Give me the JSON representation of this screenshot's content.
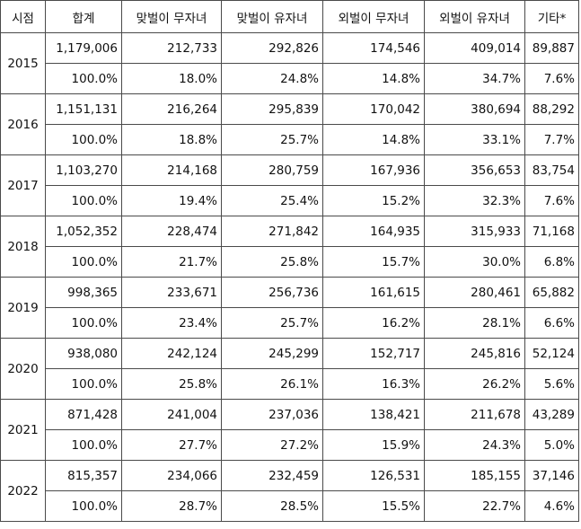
{
  "headers": [
    "시점",
    "합계",
    "맞벌이 무자녀",
    "맞벌이 유자녀",
    "외벌이 무자녀",
    "외벌이 유자녀",
    "기타*"
  ],
  "rows": [
    {
      "year": "2015",
      "counts": [
        "1,179,006",
        "212,733",
        "292,826",
        "174,546",
        "409,014",
        "89,887"
      ],
      "shares": [
        "100.0%",
        "18.0%",
        "24.8%",
        "14.8%",
        "34.7%",
        "7.6%"
      ]
    },
    {
      "year": "2016",
      "counts": [
        "1,151,131",
        "216,264",
        "295,839",
        "170,042",
        "380,694",
        "88,292"
      ],
      "shares": [
        "100.0%",
        "18.8%",
        "25.7%",
        "14.8%",
        "33.1%",
        "7.7%"
      ]
    },
    {
      "year": "2017",
      "counts": [
        "1,103,270",
        "214,168",
        "280,759",
        "167,936",
        "356,653",
        "83,754"
      ],
      "shares": [
        "100.0%",
        "19.4%",
        "25.4%",
        "15.2%",
        "32.3%",
        "7.6%"
      ]
    },
    {
      "year": "2018",
      "counts": [
        "1,052,352",
        "228,474",
        "271,842",
        "164,935",
        "315,933",
        "71,168"
      ],
      "shares": [
        "100.0%",
        "21.7%",
        "25.8%",
        "15.7%",
        "30.0%",
        "6.8%"
      ]
    },
    {
      "year": "2019",
      "counts": [
        "998,365",
        "233,671",
        "256,736",
        "161,615",
        "280,461",
        "65,882"
      ],
      "shares": [
        "100.0%",
        "23.4%",
        "25.7%",
        "16.2%",
        "28.1%",
        "6.6%"
      ]
    },
    {
      "year": "2020",
      "counts": [
        "938,080",
        "242,124",
        "245,299",
        "152,717",
        "245,816",
        "52,124"
      ],
      "shares": [
        "100.0%",
        "25.8%",
        "26.1%",
        "16.3%",
        "26.2%",
        "5.6%"
      ]
    },
    {
      "year": "2021",
      "counts": [
        "871,428",
        "241,004",
        "237,036",
        "138,421",
        "211,678",
        "43,289"
      ],
      "shares": [
        "100.0%",
        "27.7%",
        "27.2%",
        "15.9%",
        "24.3%",
        "5.0%"
      ]
    },
    {
      "year": "2022",
      "counts": [
        "815,357",
        "234,066",
        "232,459",
        "126,531",
        "185,155",
        "37,146"
      ],
      "shares": [
        "100.0%",
        "28.7%",
        "28.5%",
        "15.5%",
        "22.7%",
        "4.6%"
      ]
    }
  ]
}
